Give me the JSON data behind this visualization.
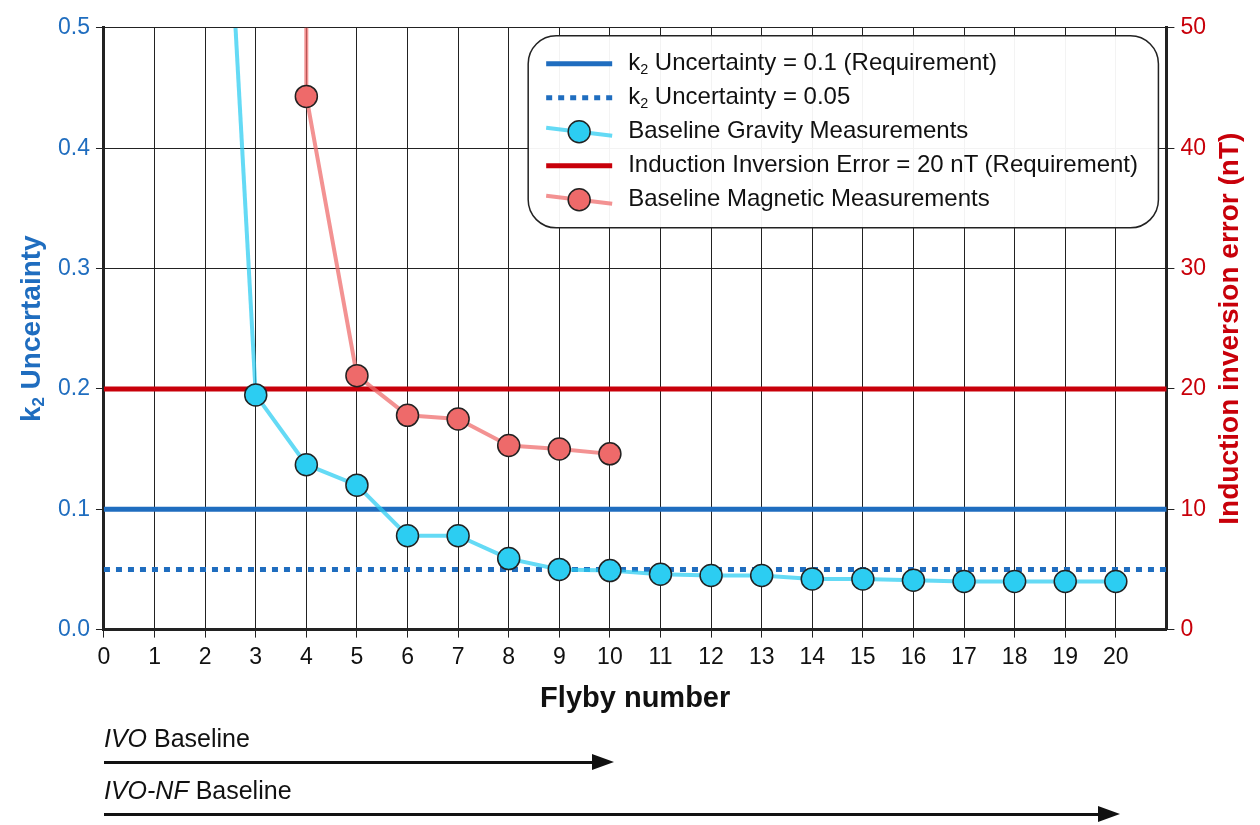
{
  "chart_data": {
    "type": "line",
    "xlabel": "Flyby number",
    "ylabel": "k$_{2}$ Uncertainty",
    "y2label": "Induction inversion error (nT)",
    "xlim": [
      0,
      21
    ],
    "xticks": [
      0,
      1,
      2,
      3,
      4,
      5,
      6,
      7,
      8,
      9,
      10,
      11,
      12,
      13,
      14,
      15,
      16,
      17,
      18,
      19,
      20
    ],
    "ylim": [
      0,
      0.5
    ],
    "yticks": [
      {
        "value": 0,
        "label": "0.0"
      },
      0.1,
      0.2,
      0.3,
      0.4,
      0.5
    ],
    "y2lim": [
      0,
      50
    ],
    "y2ticks": [
      0,
      10,
      20,
      30,
      40,
      50
    ],
    "grid": true,
    "legend": "top right",
    "marker": "circle",
    "series": [
      {
        "name": "Baseline Gravity Measurements",
        "color": "#2ccdf2",
        "x": [
          3,
          4,
          5,
          6,
          7,
          8,
          9,
          10,
          11,
          12,
          13,
          14,
          15,
          16,
          17,
          18,
          19,
          20
        ],
        "values": [
          0.195,
          0.137,
          0.12,
          0.078,
          0.078,
          0.059,
          0.05,
          0.049,
          0.046,
          0.045,
          0.045,
          0.042,
          0.042,
          0.041,
          0.04,
          0.04,
          0.04,
          0.04
        ]
      },
      {
        "color": "#2ccdf2",
        "marker": "none",
        "x": [
          2.6,
          3
        ],
        "values": [
          0.5,
          0.195
        ]
      },
      {
        "name": "Baseline Magnetic Measurements",
        "color": "#ee6a6a",
        "axis": "y2",
        "x": [
          4,
          5,
          6,
          7,
          8,
          9,
          10
        ],
        "values": [
          44.3,
          21.1,
          17.8,
          17.5,
          15.3,
          15.0,
          14.6
        ]
      },
      {
        "color": "#ee6a6a",
        "axis": "y2",
        "marker": "none",
        "x": [
          4,
          4
        ],
        "values": [
          50,
          44.3
        ]
      }
    ],
    "ref_lines": [
      {
        "axis": "y",
        "value": 0.1,
        "label": "k$_{2}$ Uncertainty = 0.1 (Requirement)",
        "color": "#1f6dbf",
        "line_style": "solid"
      },
      {
        "axis": "y",
        "value": 0.05,
        "label": "k$_{2}$ Uncertainty = 0.05",
        "color": "#1f6dbf",
        "line_style": "dotted"
      },
      {
        "axis": "y2",
        "value": 20,
        "label": "Induction Inversion Error = 20 nT (Requirement)",
        "color": "#c8000a",
        "line_style": "solid"
      }
    ],
    "annotations": [
      "IVO Baseline",
      "IVO-NF Baseline"
    ]
  }
}
